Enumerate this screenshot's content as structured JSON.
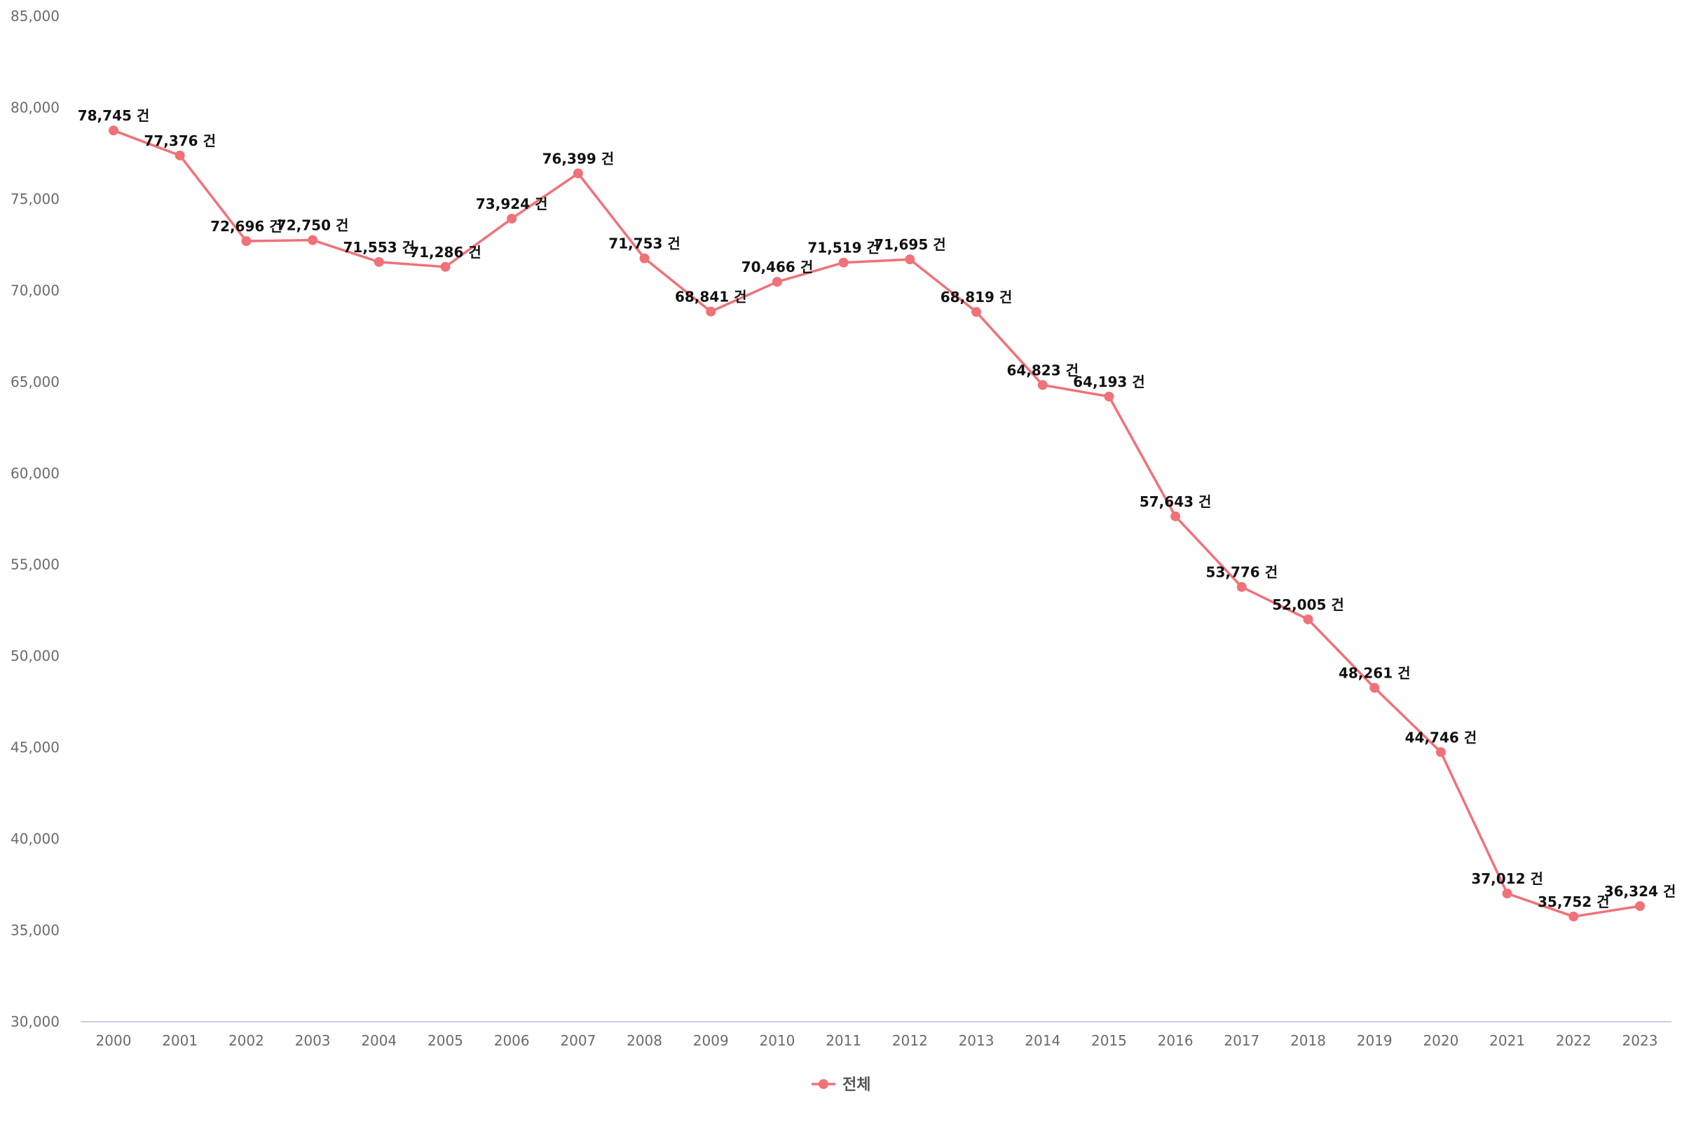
{
  "chart_data": {
    "type": "line",
    "x": [
      "2000",
      "2001",
      "2002",
      "2003",
      "2004",
      "2005",
      "2006",
      "2007",
      "2008",
      "2009",
      "2010",
      "2011",
      "2012",
      "2013",
      "2014",
      "2015",
      "2016",
      "2017",
      "2018",
      "2019",
      "2020",
      "2021",
      "2022",
      "2023"
    ],
    "series": [
      {
        "name": "전체",
        "values": [
          78745,
          77376,
          72696,
          72750,
          71553,
          71286,
          73924,
          76399,
          71753,
          68841,
          70466,
          71519,
          71695,
          68819,
          64823,
          64193,
          57643,
          53776,
          52005,
          48261,
          44746,
          37012,
          35752,
          36324
        ],
        "labels": [
          "78,745 건",
          "77,376 건",
          "72,696 건",
          "72,750 건",
          "71,553 건",
          "71,286 건",
          "73,924 건",
          "76,399 건",
          "71,753 건",
          "68,841 건",
          "70,466 건",
          "71,519 건",
          "71,695 건",
          "68,819 건",
          "64,823 건",
          "64,193 건",
          "57,643 건",
          "53,776 건",
          "52,005 건",
          "48,261 건",
          "44,746 건",
          "37,012 건",
          "35,752 건",
          "36,324 건"
        ],
        "color": "#f07178"
      }
    ],
    "y_ticks": [
      "30,000",
      "35,000",
      "40,000",
      "45,000",
      "50,000",
      "55,000",
      "60,000",
      "65,000",
      "70,000",
      "75,000",
      "80,000",
      "85,000"
    ],
    "ylim": [
      30000,
      85000
    ],
    "grid": false,
    "legend": "bottom-center",
    "title": "",
    "xlabel": "",
    "ylabel": ""
  }
}
